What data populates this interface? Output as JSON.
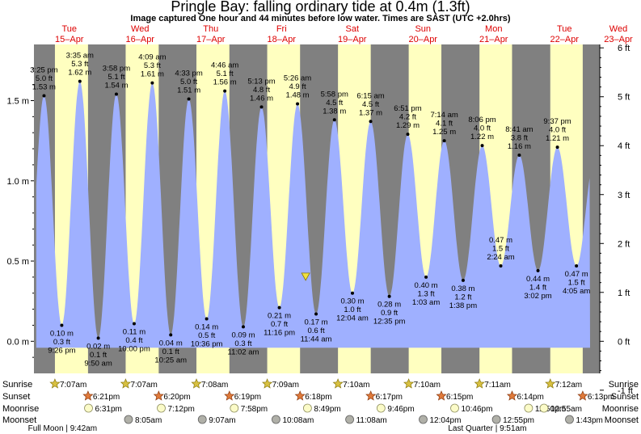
{
  "header": {
    "title": "Pringle Bay: falling  ordinary tide at 0.4m (1.3ft)",
    "subtitle": "Image captured One hour and 44 minutes before low water. Times are SAST (UTC +2.0hrs)"
  },
  "chart_data": {
    "type": "area",
    "title": "Pringle Bay: falling  ordinary tide at 0.4m (1.3ft)",
    "x_unit": "hours from 00:00 Tue 15-Apr (SAST)",
    "y_left": {
      "unit": "m",
      "range": [
        -0.2,
        1.85
      ],
      "ticks": [
        {
          "v": 0.0,
          "label": "0.0 m"
        },
        {
          "v": 0.5,
          "label": "0.5 m"
        },
        {
          "v": 1.0,
          "label": "1.0 m"
        },
        {
          "v": 1.5,
          "label": "1.5 m"
        }
      ]
    },
    "y_right": {
      "unit": "ft",
      "ticks": [
        "-1 ft",
        "0 ft",
        "1 ft",
        "2 ft",
        "3 ft",
        "4 ft",
        "5 ft",
        "6 ft"
      ]
    },
    "fill_color": "#9fb0ff",
    "night_color": "#808080",
    "day_color": "#ffffc0",
    "days": [
      {
        "date": "15-Apr",
        "dow": "Tue",
        "label": "15–Apr",
        "sunrise_h": 7.117,
        "sunset_h": 18.35
      },
      {
        "date": "16-Apr",
        "dow": "Wed",
        "label": "16–Apr",
        "sunrise_h": 31.117,
        "sunset_h": 42.333
      },
      {
        "date": "17-Apr",
        "dow": "Thu",
        "label": "17–Apr",
        "sunrise_h": 55.133,
        "sunset_h": 66.317
      },
      {
        "date": "18-Apr",
        "dow": "Fri",
        "label": "18–Apr",
        "sunrise_h": 79.15,
        "sunset_h": 90.3
      },
      {
        "date": "19-Apr",
        "dow": "Sat",
        "label": "19–Apr",
        "sunrise_h": 103.167,
        "sunset_h": 114.283
      },
      {
        "date": "20-Apr",
        "dow": "Sun",
        "label": "20–Apr",
        "sunrise_h": 127.167,
        "sunset_h": 138.25
      },
      {
        "date": "21-Apr",
        "dow": "Mon",
        "label": "21–Apr",
        "sunrise_h": 151.183,
        "sunset_h": 162.233
      },
      {
        "date": "22-Apr",
        "dow": "Tue",
        "label": "22–Apr",
        "sunrise_h": 175.2,
        "sunset_h": 186.217
      },
      {
        "date": "23-Apr",
        "dow": "Wed",
        "label": "23–Apr"
      }
    ],
    "extremes": [
      {
        "type": "low",
        "h": -2.567,
        "m": 0.14,
        "labels": []
      },
      {
        "type": "high",
        "h": 3.417,
        "m": 1.53,
        "labels": [
          "3:25 pm",
          "5.0 ft",
          "1.53 m"
        ]
      },
      {
        "type": "low",
        "h": 9.433,
        "m": 0.1,
        "labels": [
          "0.10 m",
          "0.3 ft",
          "9:26 pm"
        ]
      },
      {
        "type": "high",
        "h": 15.583,
        "m": 1.62,
        "labels": [
          "3:35 am",
          "5.3 ft",
          "1.62 m"
        ]
      },
      {
        "type": "low",
        "h": 21.833,
        "m": 0.02,
        "labels": [
          "0.02 m",
          "0.1 ft",
          "9:50 am"
        ]
      },
      {
        "type": "high",
        "h": 27.967,
        "m": 1.54,
        "labels": [
          "3:58 pm",
          "5.1 ft",
          "1.54 m"
        ]
      },
      {
        "type": "low",
        "h": 34.0,
        "m": 0.11,
        "labels": [
          "0.11 m",
          "0.4 ft",
          "10:00 pm"
        ]
      },
      {
        "type": "high",
        "h": 40.15,
        "m": 1.61,
        "labels": [
          "4:09 am",
          "5.3 ft",
          "1.61 m"
        ]
      },
      {
        "type": "low",
        "h": 46.417,
        "m": 0.04,
        "labels": [
          "0.04 m",
          "0.1 ft",
          "10:25 am"
        ]
      },
      {
        "type": "high",
        "h": 52.55,
        "m": 1.51,
        "labels": [
          "4:33 pm",
          "5.0 ft",
          "1.51 m"
        ]
      },
      {
        "type": "low",
        "h": 58.6,
        "m": 0.14,
        "labels": [
          "0.14 m",
          "0.5 ft",
          "10:36 pm"
        ]
      },
      {
        "type": "high",
        "h": 64.767,
        "m": 1.56,
        "labels": [
          "4:46 am",
          "5.1 ft",
          "1.56 m"
        ]
      },
      {
        "type": "low",
        "h": 71.033,
        "m": 0.09,
        "labels": [
          "0.09 m",
          "0.3 ft",
          "11:02 am"
        ]
      },
      {
        "type": "high",
        "h": 77.217,
        "m": 1.46,
        "labels": [
          "5:13 pm",
          "4.8 ft",
          "1.46 m"
        ]
      },
      {
        "type": "low",
        "h": 83.267,
        "m": 0.21,
        "labels": [
          "0.21 m",
          "0.7 ft",
          "11:16 pm"
        ]
      },
      {
        "type": "high",
        "h": 89.433,
        "m": 1.48,
        "labels": [
          "5:26 am",
          "4.9 ft",
          "1.48 m"
        ]
      },
      {
        "type": "low",
        "h": 95.733,
        "m": 0.17,
        "labels": [
          "0.17 m",
          "0.6 ft",
          "11:44 am"
        ]
      },
      {
        "type": "high",
        "h": 101.967,
        "m": 1.38,
        "labels": [
          "5:58 pm",
          "4.5 ft",
          "1.38 m"
        ]
      },
      {
        "type": "low",
        "h": 108.067,
        "m": 0.3,
        "labels": [
          "0.30 m",
          "1.0 ft",
          "12:04 am"
        ]
      },
      {
        "type": "high",
        "h": 114.25,
        "m": 1.37,
        "labels": [
          "6:15 am",
          "4.5 ft",
          "1.37 m"
        ]
      },
      {
        "type": "low",
        "h": 120.583,
        "m": 0.28,
        "labels": [
          "0.28 m",
          "0.9 ft",
          "12:35 pm"
        ]
      },
      {
        "type": "high",
        "h": 126.85,
        "m": 1.29,
        "labels": [
          "6:51 pm",
          "4.2 ft",
          "1.29 m"
        ]
      },
      {
        "type": "low",
        "h": 133.05,
        "m": 0.4,
        "labels": [
          "0.40 m",
          "1.3 ft",
          "1:03 am"
        ]
      },
      {
        "type": "high",
        "h": 139.233,
        "m": 1.25,
        "labels": [
          "7:14 am",
          "4.1 ft",
          "1.25 m"
        ]
      },
      {
        "type": "low",
        "h": 145.633,
        "m": 0.38,
        "labels": [
          "0.38 m",
          "1.2 ft",
          "1:38 pm"
        ]
      },
      {
        "type": "high",
        "h": 152.1,
        "m": 1.22,
        "labels": [
          "8:06 pm",
          "4.0 ft",
          "1.22 m"
        ]
      },
      {
        "type": "low",
        "h": 158.4,
        "m": 0.47,
        "labels": [
          "0.47 m",
          "1.5 ft",
          "2:24 am"
        ],
        "side": "above"
      },
      {
        "type": "high",
        "h": 164.683,
        "m": 1.16,
        "labels": [
          "8:41 am",
          "3.8 ft",
          "1.16 m"
        ]
      },
      {
        "type": "low",
        "h": 171.033,
        "m": 0.44,
        "labels": [
          "0.44 m",
          "1.4 ft",
          "3:02 pm"
        ]
      },
      {
        "type": "high",
        "h": 177.617,
        "m": 1.21,
        "labels": [
          "9:37 pm",
          "4.0 ft",
          "1.21 m"
        ]
      },
      {
        "type": "low",
        "h": 184.083,
        "m": 0.47,
        "labels": [
          "0.47 m",
          "1.5 ft",
          "4:05 am"
        ]
      },
      {
        "type": "high",
        "h": 190.3,
        "m": 1.14,
        "labels": []
      }
    ],
    "data_end_h": 188.7,
    "current": {
      "h": 92.2,
      "m": 0.4
    }
  },
  "rows": {
    "sunrise_label": "Sunrise",
    "sunset_label": "Sunset",
    "moonrise_label": "Moonrise",
    "moonset_label": "Moonset",
    "sunrise": [
      {
        "h": 7.117,
        "t": "7:07am"
      },
      {
        "h": 31.117,
        "t": "7:07am"
      },
      {
        "h": 55.133,
        "t": "7:08am"
      },
      {
        "h": 79.15,
        "t": "7:09am"
      },
      {
        "h": 103.167,
        "t": "7:10am"
      },
      {
        "h": 127.167,
        "t": "7:10am"
      },
      {
        "h": 151.183,
        "t": "7:11am"
      },
      {
        "h": 175.2,
        "t": "7:12am"
      }
    ],
    "sunset": [
      {
        "h": 18.35,
        "t": "6:21pm"
      },
      {
        "h": 42.333,
        "t": "6:20pm"
      },
      {
        "h": 66.317,
        "t": "6:19pm"
      },
      {
        "h": 90.3,
        "t": "6:18pm"
      },
      {
        "h": 114.283,
        "t": "6:17pm"
      },
      {
        "h": 138.25,
        "t": "6:15pm"
      },
      {
        "h": 162.233,
        "t": "6:14pm"
      },
      {
        "h": 186.217,
        "t": "6:13pm"
      }
    ],
    "moonrise": [
      {
        "h": 18.517,
        "t": "6:31pm"
      },
      {
        "h": 43.2,
        "t": "7:12pm"
      },
      {
        "h": 67.967,
        "t": "7:58pm"
      },
      {
        "h": 92.817,
        "t": "8:49pm"
      },
      {
        "h": 117.767,
        "t": "9:46pm"
      },
      {
        "h": 142.767,
        "t": "10:46pm"
      },
      {
        "h": 167.833,
        "t": "11:50pm"
      },
      {
        "h": 192.917,
        "t": "12:55am"
      }
    ],
    "moonset": [
      {
        "h": 32.083,
        "t": "8:05am"
      },
      {
        "h": 57.117,
        "t": "9:07am"
      },
      {
        "h": 82.133,
        "t": "10:08am"
      },
      {
        "h": 107.133,
        "t": "11:08am"
      },
      {
        "h": 132.067,
        "t": "12:04pm"
      },
      {
        "h": 156.917,
        "t": "12:55pm"
      },
      {
        "h": 181.717,
        "t": "1:43pm"
      }
    ],
    "phases": [
      {
        "h": 9.7,
        "t": "Full Moon | 9:42am"
      },
      {
        "h": 153.85,
        "t": "Last Quarter | 9:51am"
      }
    ]
  }
}
